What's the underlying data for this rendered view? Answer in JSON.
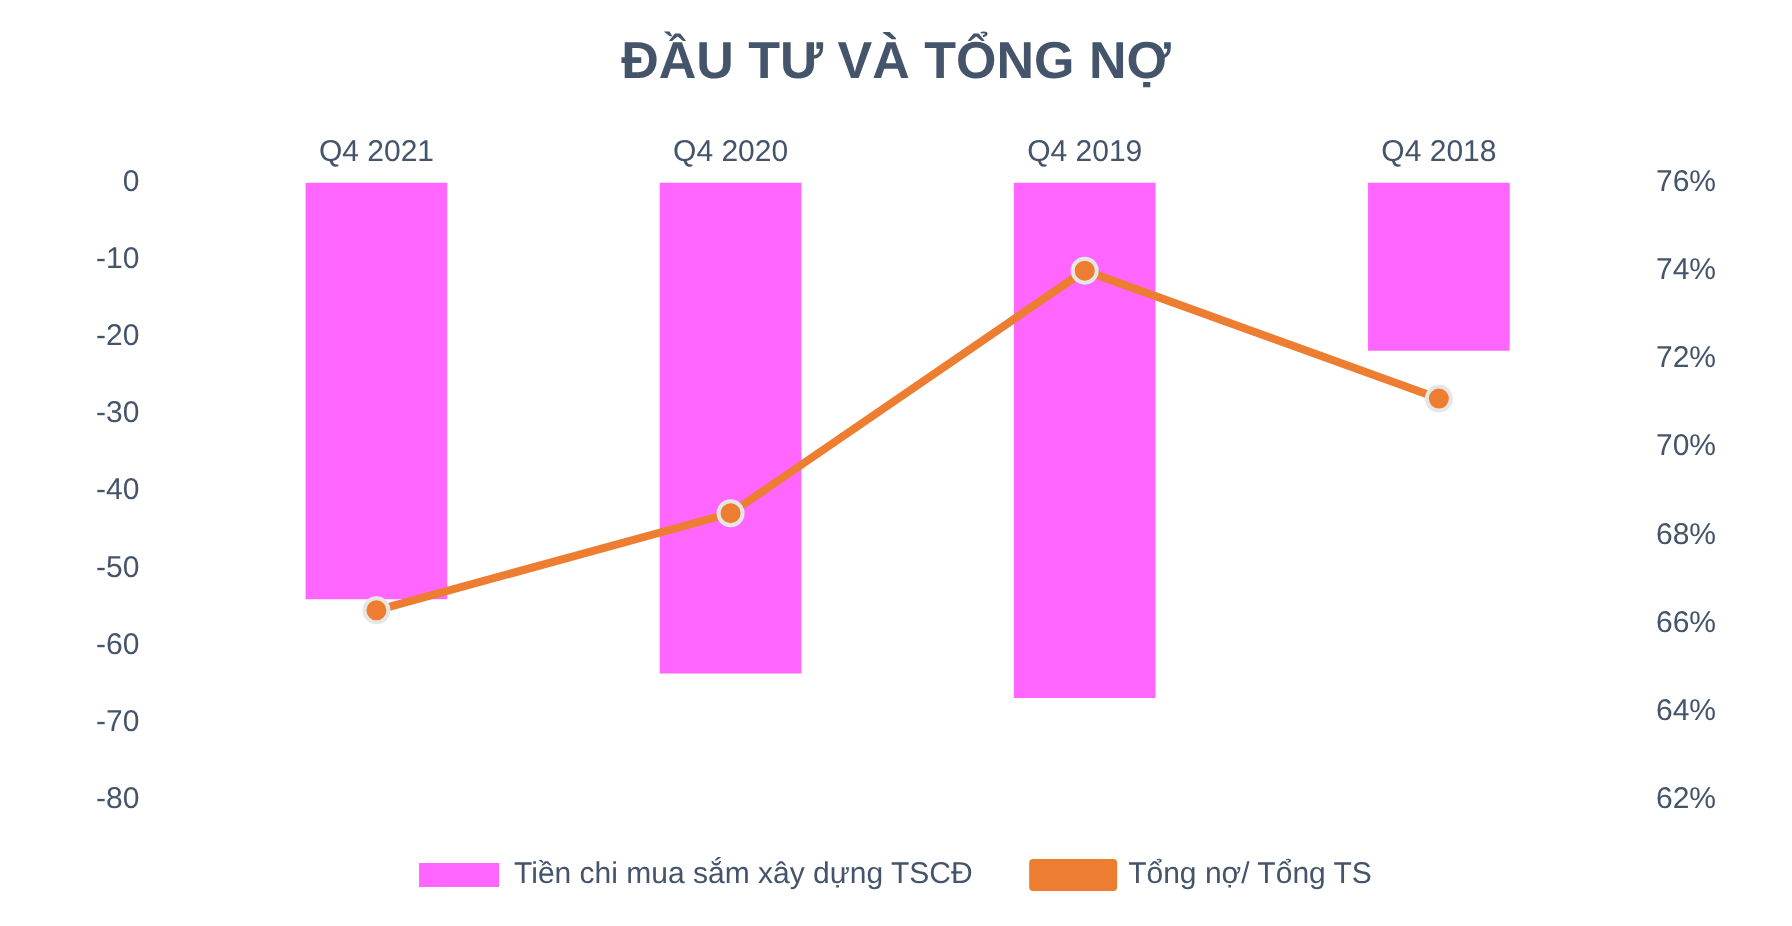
{
  "chart_data": {
    "type": "bar",
    "title": "ĐẦU TƯ VÀ TỔNG NỢ",
    "categories": [
      "Q4 2021",
      "Q4 2020",
      "Q4 2019",
      "Q4 2018"
    ],
    "series": [
      {
        "name": "Tiền chi mua sắm xây dựng TSCĐ",
        "color": "#ff66ff",
        "values": [
          -54,
          -63.6,
          -66.8,
          -21.8
        ]
      },
      {
        "name": "Tổng nợ/ Tổng TS",
        "type": "line",
        "axis": "y2",
        "color": "#ed7d31",
        "marker": "circle",
        "values": [
          66.3,
          68.5,
          74.0,
          71.1
        ]
      }
    ],
    "ylim": [
      -80,
      0
    ],
    "yticks": [
      0,
      -10,
      -20,
      -30,
      -40,
      -50,
      -60,
      -70,
      -80
    ],
    "y2lim": [
      62,
      76
    ],
    "y2ticks": [
      {
        "value": 76,
        "label": "76%"
      },
      {
        "value": 74,
        "label": "74%"
      },
      {
        "value": 72,
        "label": "72%"
      },
      {
        "value": 70,
        "label": "70%"
      },
      {
        "value": 68,
        "label": "68%"
      },
      {
        "value": 66,
        "label": "66%"
      },
      {
        "value": 64,
        "label": "64%"
      },
      {
        "value": 62,
        "label": "62%"
      }
    ],
    "grid": false,
    "legend": "bottom"
  }
}
